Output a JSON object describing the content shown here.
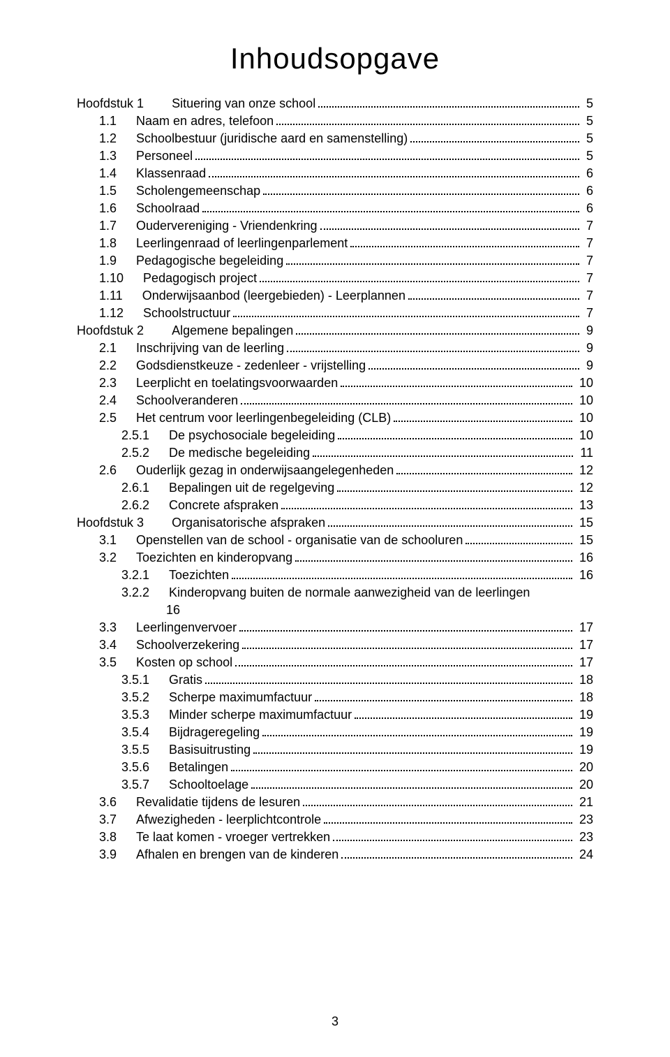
{
  "document": {
    "title": "Inhoudsopgave",
    "page_number": "3",
    "font_family": "Century Gothic",
    "title_fontsize": 42,
    "body_fontsize": 18,
    "line_height": 25,
    "text_color": "#000000",
    "background_color": "#ffffff",
    "leader_style": "dotted"
  },
  "entries": [
    {
      "indent": 0,
      "num": "Hoofdstuk 1",
      "label": "Situering van onze school",
      "page": "5",
      "chapter": true
    },
    {
      "indent": 1,
      "num": "1.1",
      "label": "Naam en adres, telefoon",
      "page": "5"
    },
    {
      "indent": 1,
      "num": "1.2",
      "label": "Schoolbestuur (juridische aard en samenstelling)",
      "page": "5"
    },
    {
      "indent": 1,
      "num": "1.3",
      "label": "Personeel",
      "page": "5"
    },
    {
      "indent": 1,
      "num": "1.4",
      "label": "Klassenraad",
      "page": "6"
    },
    {
      "indent": 1,
      "num": "1.5",
      "label": "Scholengemeenschap",
      "page": "6"
    },
    {
      "indent": 1,
      "num": "1.6",
      "label": "Schoolraad",
      "page": "6"
    },
    {
      "indent": 1,
      "num": "1.7",
      "label": "Oudervereniging - Vriendenkring",
      "page": "7"
    },
    {
      "indent": 1,
      "num": "1.8",
      "label": "Leerlingenraad of leerlingenparlement",
      "page": "7"
    },
    {
      "indent": 1,
      "num": "1.9",
      "label": "Pedagogische begeleiding",
      "page": "7"
    },
    {
      "indent": 1,
      "num": "1.10",
      "label": "Pedagogisch project",
      "page": "7"
    },
    {
      "indent": 1,
      "num": "1.11",
      "label": "Onderwijsaanbod (leergebieden) - Leerplannen",
      "page": "7"
    },
    {
      "indent": 1,
      "num": "1.12",
      "label": "Schoolstructuur",
      "page": "7"
    },
    {
      "indent": 0,
      "num": "Hoofdstuk 2",
      "label": "Algemene bepalingen",
      "page": "9",
      "chapter": true
    },
    {
      "indent": 1,
      "num": "2.1",
      "label": "Inschrijving van de leerling",
      "page": "9"
    },
    {
      "indent": 1,
      "num": "2.2",
      "label": "Godsdienstkeuze - zedenleer - vrijstelling",
      "page": "9"
    },
    {
      "indent": 1,
      "num": "2.3",
      "label": "Leerplicht en toelatingsvoorwaarden",
      "page": "10"
    },
    {
      "indent": 1,
      "num": "2.4",
      "label": "Schoolveranderen",
      "page": "10"
    },
    {
      "indent": 1,
      "num": "2.5",
      "label": "Het centrum voor leerlingenbegeleiding (CLB)",
      "page": "10"
    },
    {
      "indent": 2,
      "num": "2.5.1",
      "label": "De psychosociale begeleiding",
      "page": "10"
    },
    {
      "indent": 2,
      "num": "2.5.2",
      "label": "De medische begeleiding",
      "page": "11"
    },
    {
      "indent": 1,
      "num": "2.6",
      "label": "Ouderlijk gezag in onderwijsaangelegenheden",
      "page": "12"
    },
    {
      "indent": 2,
      "num": "2.6.1",
      "label": "Bepalingen uit de regelgeving",
      "page": "12"
    },
    {
      "indent": 2,
      "num": "2.6.2",
      "label": "Concrete afspraken",
      "page": "13"
    },
    {
      "indent": 0,
      "num": "Hoofdstuk 3",
      "label": "Organisatorische afspraken",
      "page": "15",
      "chapter": true
    },
    {
      "indent": 1,
      "num": "3.1",
      "label": "Openstellen van de school - organisatie van de schooluren",
      "page": "15"
    },
    {
      "indent": 1,
      "num": "3.2",
      "label": "Toezichten en kinderopvang",
      "page": "16"
    },
    {
      "indent": 2,
      "num": "3.2.1",
      "label": "Toezichten",
      "page": "16"
    },
    {
      "indent": 2,
      "num": "3.2.2",
      "label": "Kinderopvang buiten de normale aanwezigheid van de leerlingen",
      "page": "16",
      "page_below": true
    },
    {
      "indent": 1,
      "num": "3.3",
      "label": "Leerlingenvervoer",
      "page": "17"
    },
    {
      "indent": 1,
      "num": "3.4",
      "label": "Schoolverzekering",
      "page": "17"
    },
    {
      "indent": 1,
      "num": "3.5",
      "label": "Kosten op school",
      "page": "17"
    },
    {
      "indent": 2,
      "num": "3.5.1",
      "label": "Gratis",
      "page": "18"
    },
    {
      "indent": 2,
      "num": "3.5.2",
      "label": "Scherpe maximumfactuur",
      "page": "18"
    },
    {
      "indent": 2,
      "num": "3.5.3",
      "label": "Minder scherpe maximumfactuur",
      "page": "19"
    },
    {
      "indent": 2,
      "num": "3.5.4",
      "label": "Bijdrageregeling",
      "page": "19"
    },
    {
      "indent": 2,
      "num": "3.5.5",
      "label": "Basisuitrusting",
      "page": "19"
    },
    {
      "indent": 2,
      "num": "3.5.6",
      "label": "Betalingen",
      "page": "20"
    },
    {
      "indent": 2,
      "num": "3.5.7",
      "label": "Schooltoelage",
      "page": "20"
    },
    {
      "indent": 1,
      "num": "3.6",
      "label": "Revalidatie tijdens de lesuren",
      "page": "21"
    },
    {
      "indent": 1,
      "num": "3.7",
      "label": "Afwezigheden - leerplichtcontrole",
      "page": "23"
    },
    {
      "indent": 1,
      "num": "3.8",
      "label": "Te laat komen - vroeger vertrekken",
      "page": "23"
    },
    {
      "indent": 1,
      "num": "3.9",
      "label": "Afhalen en brengen van de kinderen",
      "page": "24"
    }
  ]
}
